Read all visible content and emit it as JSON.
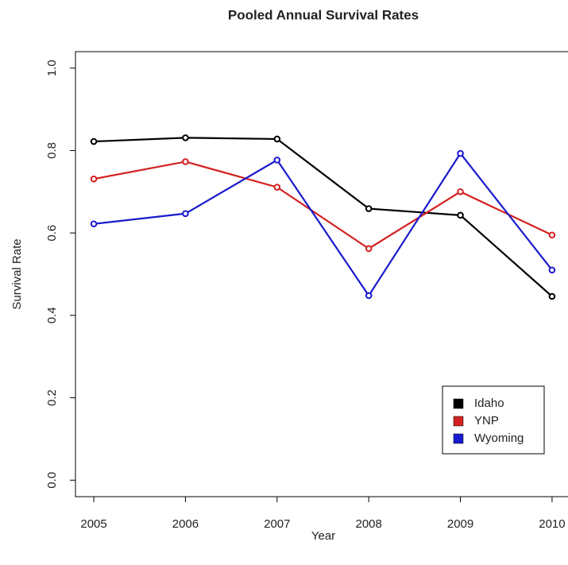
{
  "chart_data": {
    "type": "line",
    "title": "Pooled Annual Survival Rates",
    "x_label": "Year",
    "y_label": "Survival Rate",
    "x": [
      2005,
      2006,
      2007,
      2008,
      2009,
      2010
    ],
    "series": [
      {
        "name": "Idaho",
        "color": "#000000",
        "values": [
          0.822,
          0.831,
          0.828,
          0.659,
          0.643,
          0.446
        ]
      },
      {
        "name": "YNP",
        "color": "#d42020",
        "values": [
          0.731,
          0.773,
          0.711,
          0.562,
          0.7,
          0.595
        ]
      },
      {
        "name": "Wyoming",
        "color": "#1a1acd",
        "values": [
          0.622,
          0.647,
          0.777,
          0.448,
          0.793,
          0.51
        ]
      }
    ],
    "xlim": [
      2004.8,
      2010.2
    ],
    "xticks": [
      2005,
      2006,
      2007,
      2008,
      2009,
      2010
    ],
    "ylim": [
      -0.04,
      1.04
    ],
    "yticks": [
      {
        "value": 0,
        "label": "0.0"
      },
      0.2,
      0.4,
      0.6,
      0.8,
      {
        "value": 1,
        "label": "1.0"
      }
    ],
    "legend": "bottom-right"
  }
}
